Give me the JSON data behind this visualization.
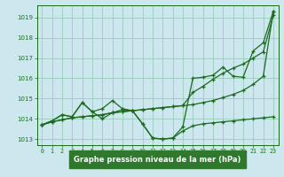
{
  "background_color": "#cce8ee",
  "grid_color": "#99ccbb",
  "line_color": "#1a6b1a",
  "marker_color": "#1a6b1a",
  "xlabel": "Graphe pression niveau de la mer (hPa)",
  "xlabel_color": "#ffffff",
  "xlabel_bg": "#2d7a2d",
  "tick_color": "#1a6b1a",
  "ylim": [
    1012.7,
    1019.6
  ],
  "xlim": [
    -0.5,
    23.5
  ],
  "yticks": [
    1013,
    1014,
    1015,
    1016,
    1017,
    1018,
    1019
  ],
  "xticks": [
    0,
    1,
    2,
    3,
    4,
    5,
    6,
    7,
    8,
    9,
    10,
    11,
    12,
    13,
    14,
    15,
    16,
    17,
    18,
    19,
    20,
    21,
    22,
    23
  ],
  "series": [
    [
      1013.7,
      1013.85,
      1013.95,
      1014.05,
      1014.1,
      1014.15,
      1014.2,
      1014.3,
      1014.35,
      1014.4,
      1014.45,
      1014.5,
      1014.55,
      1014.6,
      1014.65,
      1014.7,
      1014.8,
      1014.9,
      1015.05,
      1015.2,
      1015.4,
      1015.7,
      1016.1,
      1019.3
    ],
    [
      1013.7,
      1013.85,
      1013.95,
      1014.05,
      1014.1,
      1014.15,
      1014.2,
      1014.3,
      1014.35,
      1014.4,
      1014.45,
      1014.5,
      1014.55,
      1014.6,
      1014.65,
      1015.3,
      1015.6,
      1015.95,
      1016.25,
      1016.5,
      1016.7,
      1017.0,
      1017.3,
      1019.1
    ],
    [
      1013.7,
      1013.9,
      1014.2,
      1014.1,
      1014.8,
      1014.35,
      1014.0,
      1014.3,
      1014.45,
      1014.4,
      1013.75,
      1013.05,
      1013.0,
      1013.05,
      1013.6,
      1016.0,
      1016.05,
      1016.15,
      1016.55,
      1016.1,
      1016.05,
      1017.35,
      1017.75,
      1019.3
    ],
    [
      1013.7,
      1013.9,
      1014.2,
      1014.1,
      1014.8,
      1014.35,
      1014.5,
      1014.9,
      1014.5,
      1014.4,
      1013.75,
      1013.05,
      1013.0,
      1013.05,
      1013.4,
      1013.65,
      1013.75,
      1013.8,
      1013.85,
      1013.9,
      1013.95,
      1014.0,
      1014.05,
      1014.1
    ]
  ]
}
